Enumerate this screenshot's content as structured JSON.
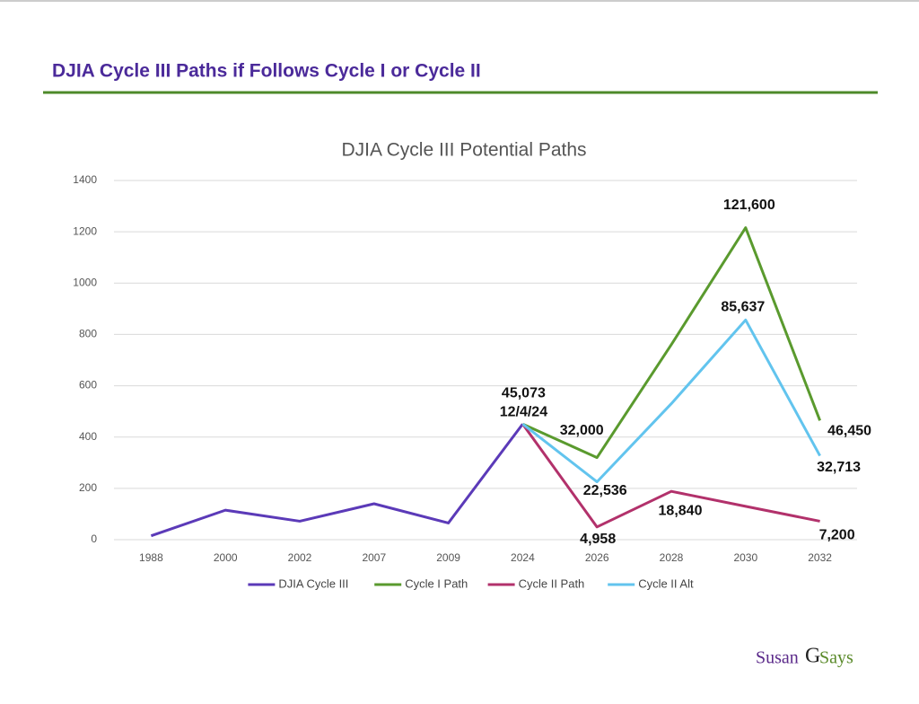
{
  "header": {
    "title": "DJIA Cycle III Paths if Follows Cycle I or Cycle II"
  },
  "logo": {
    "left": "Susan",
    "middle": "G",
    "right": "Says"
  },
  "chart_data": {
    "type": "line",
    "title": "DJIA Cycle III Potential Paths",
    "categories": [
      "1988",
      "2000",
      "2002",
      "2007",
      "2009",
      "2024",
      "2026",
      "2028",
      "2030",
      "2032"
    ],
    "ylim": [
      0,
      1400
    ],
    "yticks": [
      0,
      200,
      400,
      600,
      800,
      1000,
      1200,
      1400
    ],
    "grid": true,
    "legend": "bottom",
    "annotations": [
      "12/4/24"
    ],
    "series": [
      {
        "name": "DJIA Cycle III",
        "color": "#5b3ab8",
        "values": [
          15,
          115,
          72,
          140,
          65,
          450.73,
          null,
          null,
          null,
          null
        ],
        "value_labels": [
          null,
          null,
          null,
          null,
          null,
          "45,073",
          null,
          null,
          null,
          null
        ]
      },
      {
        "name": "Cycle I Path",
        "color": "#5a9a2e",
        "values": [
          null,
          null,
          null,
          null,
          null,
          450.73,
          320,
          760,
          1216,
          464.5
        ],
        "value_labels": [
          null,
          null,
          null,
          null,
          null,
          null,
          "32,000",
          null,
          "121,600",
          "46,450"
        ]
      },
      {
        "name": "Cycle II Path",
        "color": "#b2316b",
        "values": [
          null,
          null,
          null,
          null,
          null,
          450.73,
          49.58,
          188.4,
          130,
          72
        ],
        "value_labels": [
          null,
          null,
          null,
          null,
          null,
          null,
          "4,958",
          "18,840",
          null,
          "7,200"
        ]
      },
      {
        "name": "Cycle II Alt",
        "color": "#62c4ee",
        "values": [
          null,
          null,
          null,
          null,
          null,
          450.73,
          225.36,
          530,
          856.37,
          327.13
        ],
        "value_labels": [
          null,
          null,
          null,
          null,
          null,
          null,
          "22,536",
          null,
          "85,637",
          "32,713"
        ]
      }
    ]
  }
}
